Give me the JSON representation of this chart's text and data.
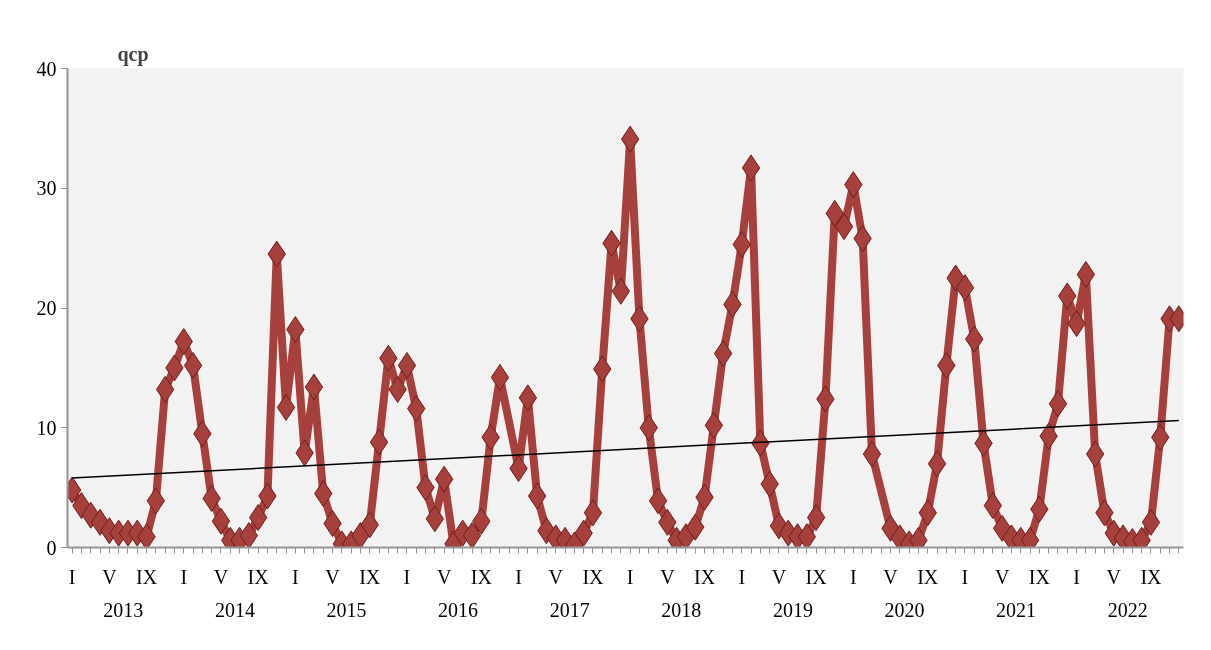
{
  "chart_data": {
    "type": "line",
    "ylabel": "qcp",
    "categories": [
      "I",
      null,
      null,
      null,
      "V",
      null,
      null,
      null,
      "IX",
      null,
      null,
      null,
      "I",
      null,
      null,
      null,
      "V",
      null,
      null,
      null,
      "IX",
      null,
      null,
      null,
      "I",
      null,
      null,
      null,
      "V",
      null,
      null,
      null,
      "IX",
      null,
      null,
      null,
      "I",
      null,
      null,
      null,
      "V",
      null,
      null,
      null,
      "IX",
      null,
      null,
      null,
      "I",
      null,
      null,
      null,
      "V",
      null,
      null,
      null,
      "IX",
      null,
      null,
      null,
      "I",
      null,
      null,
      null,
      "V",
      null,
      null,
      null,
      "IX",
      null,
      null,
      null,
      "I",
      null,
      null,
      null,
      "V",
      null,
      null,
      null,
      "IX",
      null,
      null,
      null,
      "I",
      null,
      null,
      null,
      "V",
      null,
      null,
      null,
      "IX",
      null,
      null,
      null,
      "I",
      null,
      null,
      null,
      "V",
      null,
      null,
      null,
      "IX",
      null,
      null,
      null,
      "I",
      null,
      null,
      null,
      "V",
      null,
      null,
      null,
      "IX",
      null,
      null,
      null
    ],
    "series": [
      {
        "color": "#a5403c",
        "marker": "diamond",
        "values": [
          4.8,
          3.5,
          2.7,
          2.1,
          1.4,
          1.2,
          1.2,
          1.2,
          0.9,
          3.9,
          13.2,
          15.0,
          17.2,
          15.2,
          9.5,
          4.1,
          2.2,
          0.6,
          0.6,
          1.0,
          2.5,
          4.3,
          24.5,
          11.7,
          18.2,
          7.9,
          13.4,
          4.5,
          2.0,
          0.3,
          0.3,
          1.0,
          1.9,
          8.8,
          15.8,
          13.2,
          15.2,
          11.6,
          5.0,
          2.4,
          5.7,
          0.3,
          1.2,
          1.0,
          2.2,
          9.2,
          14.2,
          null,
          6.6,
          12.5,
          4.3,
          1.4,
          0.8,
          0.6,
          0.2,
          1.2,
          2.9,
          14.9,
          25.4,
          21.4,
          34.1,
          19.1,
          10.0,
          3.9,
          2.1,
          0.6,
          0.9,
          1.7,
          4.2,
          10.2,
          16.2,
          20.3,
          25.3,
          31.7,
          8.7,
          5.3,
          1.8,
          1.2,
          0.9,
          0.9,
          2.5,
          12.4,
          27.9,
          26.8,
          30.3,
          25.8,
          7.8,
          null,
          1.6,
          0.8,
          0.3,
          0.6,
          2.9,
          7.0,
          15.2,
          22.5,
          21.7,
          17.4,
          8.7,
          3.5,
          1.6,
          0.8,
          0.6,
          0.6,
          3.2,
          9.3,
          12.0,
          21.0,
          18.7,
          22.8,
          7.8,
          2.9,
          1.2,
          0.8,
          0.5,
          0.6,
          2.1,
          9.2,
          19.1,
          19.1
        ]
      },
      {
        "color": "#000000",
        "marker": "none",
        "values": [
          5.8,
          null,
          null,
          null,
          null,
          null,
          null,
          null,
          null,
          null,
          null,
          null,
          null,
          null,
          null,
          null,
          null,
          null,
          null,
          null,
          null,
          null,
          null,
          null,
          null,
          null,
          null,
          null,
          null,
          null,
          null,
          null,
          null,
          null,
          null,
          null,
          null,
          null,
          null,
          null,
          null,
          null,
          null,
          null,
          null,
          null,
          null,
          null,
          null,
          null,
          null,
          null,
          null,
          null,
          null,
          null,
          null,
          null,
          null,
          null,
          null,
          null,
          null,
          null,
          null,
          null,
          null,
          null,
          null,
          null,
          null,
          null,
          null,
          null,
          null,
          null,
          null,
          null,
          null,
          null,
          null,
          null,
          null,
          null,
          null,
          null,
          null,
          null,
          null,
          null,
          null,
          null,
          null,
          null,
          null,
          null,
          null,
          null,
          null,
          null,
          null,
          null,
          null,
          null,
          null,
          null,
          null,
          null,
          null,
          null,
          null,
          null,
          null,
          null,
          null,
          null,
          null,
          null,
          null,
          10.6
        ]
      }
    ],
    "annotations": [
      "2013",
      "2014",
      "2015",
      "2016",
      "2017",
      "2018",
      "2019",
      "2020",
      "2021",
      "2022"
    ],
    "ylim": [
      0,
      40
    ],
    "yticks": [
      0,
      10,
      20,
      30,
      40
    ],
    "grid": false
  }
}
